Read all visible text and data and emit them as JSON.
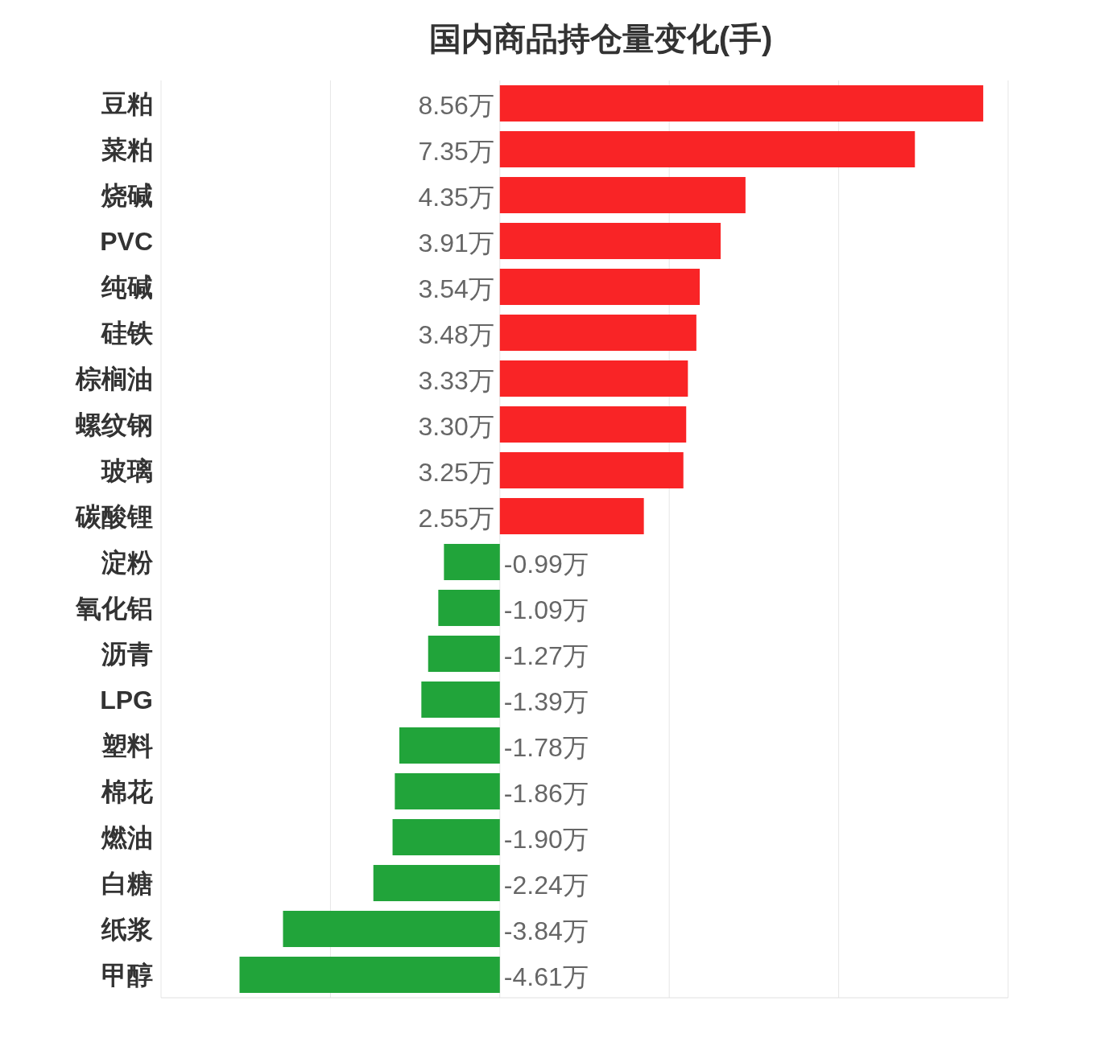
{
  "chart_data": {
    "type": "bar",
    "orientation": "horizontal",
    "title": "国内商品持仓量变化(手)",
    "categories": [
      "豆粕",
      "菜粕",
      "烧碱",
      "PVC",
      "纯碱",
      "硅铁",
      "棕榈油",
      "螺纹钢",
      "玻璃",
      "碳酸锂",
      "淀粉",
      "氧化铝",
      "沥青",
      "LPG",
      "塑料",
      "棉花",
      "燃油",
      "白糖",
      "纸浆",
      "甲醇"
    ],
    "values": [
      8.56,
      7.35,
      4.35,
      3.91,
      3.54,
      3.48,
      3.33,
      3.3,
      3.25,
      2.55,
      -0.99,
      -1.09,
      -1.27,
      -1.39,
      -1.78,
      -1.86,
      -1.9,
      -2.24,
      -3.84,
      -4.61
    ],
    "colors": [
      "#f92426",
      "#f92426",
      "#f92426",
      "#f92426",
      "#f92426",
      "#f92426",
      "#f92426",
      "#f92426",
      "#f92426",
      "#f92426",
      "#21a43a",
      "#21a43a",
      "#21a43a",
      "#21a43a",
      "#21a43a",
      "#21a43a",
      "#21a43a",
      "#21a43a",
      "#21a43a",
      "#21a43a"
    ],
    "value_labels": [
      "8.56万",
      "7.35万",
      "4.35万",
      "3.91万",
      "3.54万",
      "3.48万",
      "3.33万",
      "3.30万",
      "3.25万",
      "2.55万",
      "-0.99万",
      "-1.09万",
      "-1.27万",
      "-1.39万",
      "-1.78万",
      "-1.86万",
      "-1.90万",
      "-2.24万",
      "-3.84万",
      "-4.61万"
    ],
    "xlim": [
      -6,
      9
    ],
    "xticks": [
      {
        "value": -6,
        "label": null
      },
      {
        "value": -3,
        "label": null
      },
      {
        "value": 0,
        "label": null
      },
      {
        "value": 3,
        "label": null
      },
      {
        "value": 6,
        "label": null
      },
      {
        "value": 9,
        "label": null
      }
    ],
    "grid": "x",
    "tick_labels": "y"
  }
}
